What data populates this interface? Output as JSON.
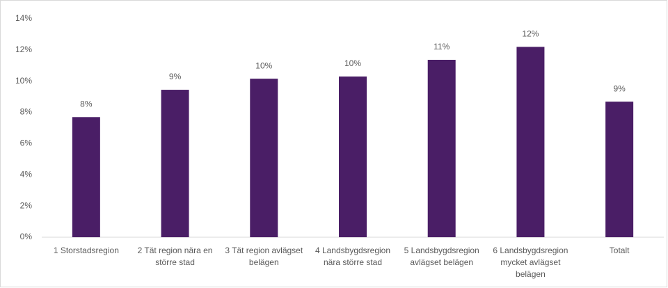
{
  "chart_data": {
    "type": "bar",
    "categories": [
      "1 Storstadsregion",
      "2 Tät region nära en större stad",
      "3 Tät region avlägset belägen",
      "4 Landsbygdsregion nära större stad",
      "5 Landsbygdsregion avlägset belägen",
      "6 Landsbygdsregion mycket avlägset belägen",
      "Totalt"
    ],
    "values": [
      7.7,
      9.45,
      10.16,
      10.3,
      11.37,
      12.2,
      8.69
    ],
    "value_labels": [
      "8%",
      "9%",
      "10%",
      "10%",
      "11%",
      "12%",
      "9%"
    ],
    "color": "#4a1e66",
    "ylim": [
      0,
      14
    ],
    "yticks": [
      {
        "value": 0,
        "label": "0%"
      },
      {
        "value": 2,
        "label": "2%"
      },
      {
        "value": 4,
        "label": "4%"
      },
      {
        "value": 6,
        "label": "6%"
      },
      {
        "value": 8,
        "label": "8%"
      },
      {
        "value": 10,
        "label": "10%"
      },
      {
        "value": 12,
        "label": "12%"
      },
      {
        "value": 14,
        "label": "14%"
      }
    ],
    "grid": false
  }
}
